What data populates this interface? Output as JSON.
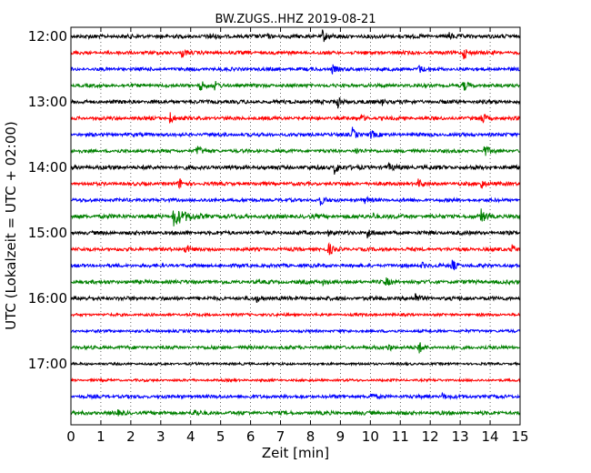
{
  "chart_data": {
    "type": "line",
    "title": "BW.ZUGS..HHZ 2019-08-21",
    "xlabel": "Zeit  [min]",
    "ylabel": "UTC (Lokalzeit = UTC + 02:00)",
    "xlim": [
      0,
      15
    ],
    "x_ticks": [
      "0",
      "1",
      "2",
      "3",
      "4",
      "5",
      "6",
      "7",
      "8",
      "9",
      "10",
      "11",
      "12",
      "13",
      "14",
      "15"
    ],
    "y_ticks": [
      "12:00",
      "13:00",
      "14:00",
      "15:00",
      "16:00",
      "17:00"
    ],
    "grid": "vertical-dotted",
    "trace_interval_min": 15,
    "start_time": "12:00",
    "colors": [
      "#000000",
      "#ff0000",
      "#0000ff",
      "#008000"
    ],
    "traces": [
      {
        "label": "12:00",
        "amp": 2.2,
        "events": [
          {
            "t": 8.4,
            "a": 7
          },
          {
            "t": 12.6,
            "a": 4
          },
          {
            "t": 4.6,
            "a": 3
          },
          {
            "t": 6.5,
            "a": 3
          }
        ]
      },
      {
        "label": "12:15",
        "amp": 2.0,
        "events": [
          {
            "t": 13.1,
            "a": 8
          },
          {
            "t": 3.7,
            "a": 5
          }
        ]
      },
      {
        "label": "12:30",
        "amp": 2.0,
        "events": [
          {
            "t": 8.7,
            "a": 6
          },
          {
            "t": 11.6,
            "a": 5
          }
        ]
      },
      {
        "label": "12:45",
        "amp": 2.0,
        "events": [
          {
            "t": 4.3,
            "a": 7
          },
          {
            "t": 4.8,
            "a": 4
          },
          {
            "t": 13.1,
            "a": 6
          }
        ]
      },
      {
        "label": "13:00",
        "amp": 2.2,
        "events": [
          {
            "t": 8.9,
            "a": 7
          },
          {
            "t": 10.4,
            "a": 3
          }
        ]
      },
      {
        "label": "13:15",
        "amp": 2.0,
        "events": [
          {
            "t": 3.3,
            "a": 7
          },
          {
            "t": 13.7,
            "a": 7
          },
          {
            "t": 9.7,
            "a": 3
          }
        ]
      },
      {
        "label": "13:30",
        "amp": 2.0,
        "events": [
          {
            "t": 9.4,
            "a": 7
          },
          {
            "t": 10.0,
            "a": 5
          }
        ]
      },
      {
        "label": "13:45",
        "amp": 2.0,
        "events": [
          {
            "t": 4.2,
            "a": 7
          },
          {
            "t": 13.8,
            "a": 7
          },
          {
            "t": 9.5,
            "a": 3
          }
        ]
      },
      {
        "label": "14:00",
        "amp": 2.4,
        "events": [
          {
            "t": 8.8,
            "a": 8
          },
          {
            "t": 10.6,
            "a": 3
          }
        ]
      },
      {
        "label": "14:15",
        "amp": 2.0,
        "events": [
          {
            "t": 3.6,
            "a": 7
          },
          {
            "t": 13.7,
            "a": 6
          },
          {
            "t": 11.6,
            "a": 4
          }
        ]
      },
      {
        "label": "14:30",
        "amp": 2.0,
        "events": [
          {
            "t": 8.3,
            "a": 6
          },
          {
            "t": 9.8,
            "a": 3
          }
        ]
      },
      {
        "label": "14:45",
        "amp": 2.4,
        "events": [
          {
            "t": 3.4,
            "a": 11
          },
          {
            "t": 13.7,
            "a": 7
          },
          {
            "t": 10.1,
            "a": 3
          }
        ]
      },
      {
        "label": "15:00",
        "amp": 2.2,
        "events": [
          {
            "t": 9.9,
            "a": 6
          },
          {
            "t": 8.6,
            "a": 3
          }
        ]
      },
      {
        "label": "15:15",
        "amp": 2.0,
        "events": [
          {
            "t": 3.8,
            "a": 7
          },
          {
            "t": 8.6,
            "a": 7
          },
          {
            "t": 14.7,
            "a": 6
          }
        ]
      },
      {
        "label": "15:30",
        "amp": 2.0,
        "events": [
          {
            "t": 12.7,
            "a": 8
          },
          {
            "t": 11.7,
            "a": 4
          }
        ]
      },
      {
        "label": "15:45",
        "amp": 2.2,
        "events": [
          {
            "t": 10.5,
            "a": 4
          },
          {
            "t": 8.4,
            "a": 3
          }
        ]
      },
      {
        "label": "16:00",
        "amp": 2.2,
        "events": [
          {
            "t": 11.5,
            "a": 5
          },
          {
            "t": 6.2,
            "a": 3
          }
        ]
      },
      {
        "label": "16:15",
        "amp": 1.6,
        "events": []
      },
      {
        "label": "16:30",
        "amp": 1.6,
        "events": []
      },
      {
        "label": "16:45",
        "amp": 2.0,
        "events": [
          {
            "t": 11.6,
            "a": 7
          },
          {
            "t": 10.6,
            "a": 4
          }
        ]
      },
      {
        "label": "17:00",
        "amp": 1.4,
        "events": []
      },
      {
        "label": "17:15",
        "amp": 1.4,
        "events": []
      },
      {
        "label": "17:30",
        "amp": 2.0,
        "events": [
          {
            "t": 10.0,
            "a": 3
          },
          {
            "t": 12.4,
            "a": 3
          }
        ]
      },
      {
        "label": "17:45",
        "amp": 2.2,
        "events": [
          {
            "t": 4.1,
            "a": 4
          },
          {
            "t": 1.5,
            "a": 3
          }
        ]
      }
    ]
  }
}
